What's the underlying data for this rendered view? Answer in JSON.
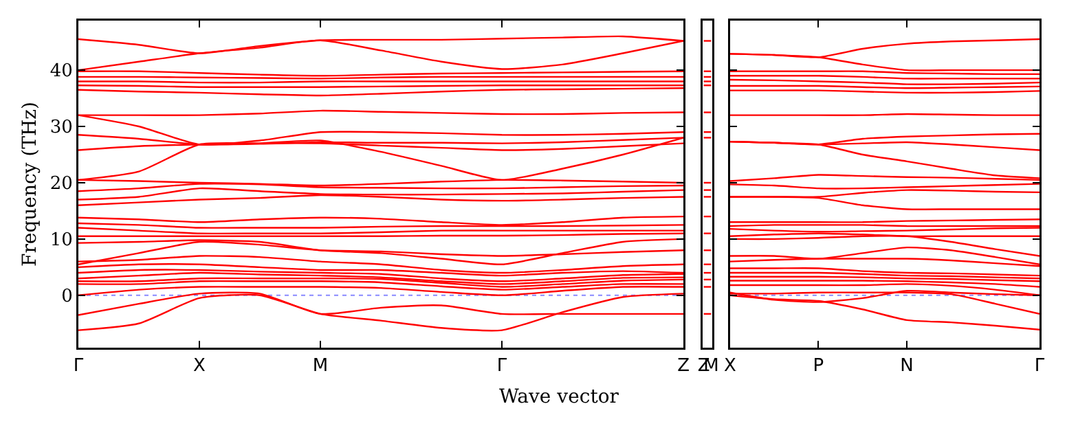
{
  "chart_data": [
    {
      "type": "line",
      "xlabel": "Wave vector",
      "ylabel": "Frequency (THz)",
      "categories": [
        "Γ",
        null,
        "X",
        null,
        "M",
        null,
        null,
        "Γ",
        null,
        null,
        "Z"
      ],
      "ylim": [
        -9.3,
        48.8
      ],
      "yticks": [
        0,
        10,
        20,
        30,
        40
      ],
      "grid": false,
      "ref_lines": [
        {
          "axis": "y",
          "value": 0,
          "color": "#8888ff",
          "line_style": "dotted"
        }
      ],
      "series": [
        {
          "color": "#ff0000",
          "values": [
            45.5,
            44.5,
            43,
            44.3,
            45.3,
            45.4,
            45.4,
            45.6,
            45.8,
            46,
            45.2
          ]
        },
        {
          "color": "#ff0000",
          "values": [
            40,
            41.5,
            43,
            44,
            45.3,
            43.5,
            41.5,
            40.2,
            41,
            43,
            45.2
          ]
        },
        {
          "color": "#ff0000",
          "values": [
            39.8,
            39.8,
            39.5,
            39.2,
            39,
            39.2,
            39.4,
            39.5,
            39.6,
            39.7,
            39.8
          ]
        },
        {
          "color": "#ff0000",
          "values": [
            38.8,
            38.8,
            38.7,
            38.6,
            38.5,
            38.7,
            38.8,
            38.8,
            38.8,
            38.8,
            38.8
          ]
        },
        {
          "color": "#ff0000",
          "values": [
            38,
            38,
            37.8,
            37.8,
            38,
            38,
            38,
            38,
            38,
            38,
            38
          ]
        },
        {
          "color": "#ff0000",
          "values": [
            37.3,
            37.2,
            37,
            37,
            37,
            37.1,
            37.2,
            37.3,
            37.3,
            37.3,
            37.3
          ]
        },
        {
          "color": "#ff0000",
          "values": [
            36.5,
            36.2,
            36,
            35.7,
            35.5,
            35.8,
            36.2,
            36.5,
            36.6,
            36.7,
            36.8
          ]
        },
        {
          "color": "#ff0000",
          "values": [
            32,
            32,
            32,
            32.3,
            32.8,
            32.6,
            32.4,
            32.2,
            32.2,
            32.4,
            32.5
          ]
        },
        {
          "color": "#ff0000",
          "values": [
            32,
            30,
            26.8,
            27.5,
            29,
            29,
            28.8,
            28.5,
            28.5,
            28.7,
            29
          ]
        },
        {
          "color": "#ff0000",
          "values": [
            28.5,
            27.8,
            26.8,
            26.9,
            27.2,
            27.1,
            27.1,
            27,
            27.2,
            27.6,
            28
          ]
        },
        {
          "color": "#ff0000",
          "values": [
            25.8,
            26.5,
            26.8,
            27,
            27,
            26.6,
            26.2,
            25.8,
            26,
            26.5,
            27
          ]
        },
        {
          "color": "#ff0000",
          "values": [
            20.5,
            22,
            26.8,
            27,
            27.5,
            25.5,
            23,
            20.5,
            22.5,
            25,
            28
          ]
        },
        {
          "color": "#ff0000",
          "values": [
            20.5,
            20.3,
            20,
            19.8,
            19.5,
            19.8,
            20.2,
            20.5,
            20.4,
            20.2,
            20
          ]
        },
        {
          "color": "#ff0000",
          "values": [
            18.5,
            19,
            19.8,
            19.7,
            19.2,
            19.1,
            19,
            19,
            19.2,
            19.4,
            19.5
          ]
        },
        {
          "color": "#ff0000",
          "values": [
            17,
            17.5,
            19,
            18.5,
            18,
            17.9,
            17.9,
            18,
            18.1,
            18.4,
            18.7
          ]
        },
        {
          "color": "#ff0000",
          "values": [
            16,
            16.5,
            17,
            17.3,
            17.8,
            17.5,
            17,
            16.8,
            17,
            17.3,
            17.5
          ]
        },
        {
          "color": "#ff0000",
          "values": [
            13.8,
            13.5,
            13,
            13.5,
            13.8,
            13.6,
            13,
            12.5,
            13,
            13.8,
            14
          ]
        },
        {
          "color": "#ff0000",
          "values": [
            12.8,
            12.5,
            12,
            12,
            12,
            12.2,
            12.3,
            12.3,
            12.3,
            12.4,
            12.5
          ]
        },
        {
          "color": "#ff0000",
          "values": [
            12,
            11.5,
            11,
            11,
            11,
            11.2,
            11.5,
            11.5,
            11.5,
            11.5,
            11.5
          ]
        },
        {
          "color": "#ff0000",
          "values": [
            10.5,
            10.5,
            10.5,
            10.5,
            10.5,
            10.5,
            10.6,
            10.6,
            10.7,
            10.9,
            11
          ]
        },
        {
          "color": "#ff0000",
          "values": [
            9.3,
            9.5,
            9.8,
            9.5,
            8,
            7.5,
            6.5,
            5.5,
            7.5,
            9.5,
            10
          ]
        },
        {
          "color": "#ff0000",
          "values": [
            5.5,
            7.5,
            9.5,
            9,
            8,
            7.8,
            7.3,
            7,
            7.3,
            7.7,
            8
          ]
        },
        {
          "color": "#ff0000",
          "values": [
            6,
            6.3,
            7,
            6.8,
            6,
            5.5,
            4.5,
            4,
            4.5,
            5.2,
            5.5
          ]
        },
        {
          "color": "#ff0000",
          "values": [
            5,
            5.5,
            5.5,
            5,
            4.5,
            4.5,
            4,
            3.5,
            4,
            4.3,
            4
          ]
        },
        {
          "color": "#ff0000",
          "values": [
            4,
            4.5,
            4.5,
            4.2,
            4,
            3.8,
            3,
            2.5,
            3,
            3.6,
            3.8
          ]
        },
        {
          "color": "#ff0000",
          "values": [
            3,
            3.5,
            4,
            3.7,
            3.5,
            3.2,
            2.5,
            2,
            2.5,
            3.1,
            3.2
          ]
        },
        {
          "color": "#ff0000",
          "values": [
            2.5,
            2.5,
            3,
            3,
            3,
            2.9,
            2.2,
            1.5,
            2,
            2.6,
            2.8
          ]
        },
        {
          "color": "#ff0000",
          "values": [
            2,
            2,
            2.5,
            2.5,
            2.5,
            2.3,
            1.6,
            1,
            1.5,
            2,
            2
          ]
        },
        {
          "color": "#ff0000",
          "values": [
            0,
            1,
            1.5,
            1.5,
            1.5,
            1.3,
            0.6,
            0,
            0.8,
            1.5,
            1.5
          ]
        },
        {
          "color": "#ff0000",
          "values": [
            -3.5,
            -1.5,
            0.3,
            0.3,
            -3.3,
            -2.2,
            -1.8,
            -3.3,
            -3.3,
            -3.3,
            -3.3
          ]
        },
        {
          "color": "#ff0000",
          "values": [
            -6.2,
            -5,
            -0.5,
            0,
            -3.3,
            -4.5,
            -5.8,
            -6.2,
            -3,
            -0.3,
            0.3
          ]
        }
      ]
    },
    {
      "type": "line",
      "categories": [
        "Z",
        "M"
      ],
      "ylim": [
        -9.3,
        48.8
      ],
      "tick_labels": "x",
      "grid": false,
      "series": [
        {
          "color": "#ff0000",
          "values": [
            45.2,
            45.2
          ]
        },
        {
          "color": "#ff0000",
          "values": [
            39.8,
            39.8
          ]
        },
        {
          "color": "#ff0000",
          "values": [
            38.8,
            38.8
          ]
        },
        {
          "color": "#ff0000",
          "values": [
            38,
            38
          ]
        },
        {
          "color": "#ff0000",
          "values": [
            37.3,
            37.3
          ]
        },
        {
          "color": "#ff0000",
          "values": [
            32.5,
            32.5
          ]
        },
        {
          "color": "#ff0000",
          "values": [
            29,
            29
          ]
        },
        {
          "color": "#ff0000",
          "values": [
            28,
            28
          ]
        },
        {
          "color": "#ff0000",
          "values": [
            20,
            20
          ]
        },
        {
          "color": "#ff0000",
          "values": [
            18.7,
            18.7
          ]
        },
        {
          "color": "#ff0000",
          "values": [
            17.5,
            17.5
          ]
        },
        {
          "color": "#ff0000",
          "values": [
            14,
            14
          ]
        },
        {
          "color": "#ff0000",
          "values": [
            11,
            11
          ]
        },
        {
          "color": "#ff0000",
          "values": [
            8,
            8
          ]
        },
        {
          "color": "#ff0000",
          "values": [
            5.5,
            5.5
          ]
        },
        {
          "color": "#ff0000",
          "values": [
            4,
            4
          ]
        },
        {
          "color": "#ff0000",
          "values": [
            2.8,
            2.8
          ]
        },
        {
          "color": "#ff0000",
          "values": [
            1.5,
            1.5
          ]
        },
        {
          "color": "#ff0000",
          "values": [
            -3.3,
            -3.3
          ]
        }
      ]
    },
    {
      "type": "line",
      "categories": [
        "X",
        null,
        "P",
        null,
        "N",
        null,
        null,
        "Γ"
      ],
      "ylim": [
        -9.3,
        48.8
      ],
      "yticks": [
        {
          "value": 0,
          "label": null
        },
        {
          "value": 10,
          "label": null
        },
        {
          "value": 20,
          "label": null
        },
        {
          "value": 30,
          "label": null
        },
        {
          "value": 40,
          "label": null
        }
      ],
      "tick_labels": "x",
      "grid": false,
      "ref_lines": [
        {
          "axis": "y",
          "value": 0,
          "color": "#8888ff",
          "line_style": "dotted"
        }
      ],
      "series": [
        {
          "color": "#ff0000",
          "values": [
            42.9,
            42.7,
            42.3,
            43.8,
            44.7,
            45.1,
            45.3,
            45.5
          ]
        },
        {
          "color": "#ff0000",
          "values": [
            42.9,
            42.7,
            42.3,
            41,
            40,
            40,
            40,
            40
          ]
        },
        {
          "color": "#ff0000",
          "values": [
            39.8,
            39.8,
            39.8,
            39.8,
            39.5,
            39.4,
            39.3,
            39.3
          ]
        },
        {
          "color": "#ff0000",
          "values": [
            39,
            39,
            39,
            38.8,
            38.5,
            38.5,
            38.5,
            38.5
          ]
        },
        {
          "color": "#ff0000",
          "values": [
            38.3,
            38.2,
            38,
            37.8,
            37.5,
            37.5,
            37.6,
            37.8
          ]
        },
        {
          "color": "#ff0000",
          "values": [
            37.2,
            37.2,
            37.2,
            37,
            36.8,
            36.9,
            37,
            37.1
          ]
        },
        {
          "color": "#ff0000",
          "values": [
            36.4,
            36.4,
            36.4,
            36.2,
            36,
            36,
            36.1,
            36.3
          ]
        },
        {
          "color": "#ff0000",
          "values": [
            32,
            32,
            32,
            32,
            32.2,
            32.1,
            32,
            32
          ]
        },
        {
          "color": "#ff0000",
          "values": [
            27.3,
            27.1,
            26.8,
            27.8,
            28.2,
            28.4,
            28.6,
            28.7
          ]
        },
        {
          "color": "#ff0000",
          "values": [
            27.3,
            27.1,
            26.8,
            27,
            27.2,
            26.8,
            26.3,
            25.8
          ]
        },
        {
          "color": "#ff0000",
          "values": [
            27.3,
            27.1,
            26.8,
            25,
            23.8,
            22.5,
            21.3,
            20.8
          ]
        },
        {
          "color": "#ff0000",
          "values": [
            20.3,
            20.8,
            21.4,
            21.2,
            21,
            20.9,
            20.7,
            20.5
          ]
        },
        {
          "color": "#ff0000",
          "values": [
            19.7,
            19.5,
            19,
            19,
            19.2,
            19.4,
            19.6,
            19.8
          ]
        },
        {
          "color": "#ff0000",
          "values": [
            17.5,
            17.5,
            17.5,
            18.2,
            18.7,
            18.6,
            18.4,
            18.3
          ]
        },
        {
          "color": "#ff0000",
          "values": [
            17.5,
            17.5,
            17.3,
            16,
            15.3,
            15.3,
            15.3,
            15.3
          ]
        },
        {
          "color": "#ff0000",
          "values": [
            13,
            13,
            13,
            13,
            13.2,
            13.3,
            13.4,
            13.5
          ]
        },
        {
          "color": "#ff0000",
          "values": [
            12.3,
            12.5,
            12.5,
            12.5,
            12.3,
            12.3,
            12.3,
            12.3
          ]
        },
        {
          "color": "#ff0000",
          "values": [
            11.8,
            11.5,
            11.3,
            11.4,
            11.5,
            11.7,
            11.9,
            12
          ]
        },
        {
          "color": "#ff0000",
          "values": [
            10.5,
            10.8,
            11,
            10.8,
            10.5,
            10.5,
            10.5,
            10.5
          ]
        },
        {
          "color": "#ff0000",
          "values": [
            10,
            10,
            10.2,
            10.5,
            10.5,
            9.5,
            8.2,
            7
          ]
        },
        {
          "color": "#ff0000",
          "values": [
            7,
            7,
            6.5,
            7.5,
            8.5,
            8,
            6.8,
            5.5
          ]
        },
        {
          "color": "#ff0000",
          "values": [
            6,
            6.3,
            6.5,
            6.5,
            6.5,
            6.2,
            5.7,
            5.2
          ]
        },
        {
          "color": "#ff0000",
          "values": [
            4.8,
            4.8,
            4.8,
            4.3,
            4,
            3.9,
            3.7,
            3.5
          ]
        },
        {
          "color": "#ff0000",
          "values": [
            4,
            4,
            4,
            3.8,
            3.5,
            3.4,
            3.2,
            3
          ]
        },
        {
          "color": "#ff0000",
          "values": [
            3.3,
            3.3,
            3.3,
            3.2,
            3,
            2.9,
            2.7,
            2.5
          ]
        },
        {
          "color": "#ff0000",
          "values": [
            2.6,
            2.6,
            2.6,
            2.6,
            2.5,
            2.3,
            2,
            1.5
          ]
        },
        {
          "color": "#ff0000",
          "values": [
            1.8,
            1.8,
            1.8,
            1.8,
            2,
            1.7,
            1,
            0
          ]
        },
        {
          "color": "#ff0000",
          "values": [
            0.5,
            -0.8,
            -1.2,
            -0.5,
            0.8,
            0.5,
            0.2,
            0
          ]
        },
        {
          "color": "#ff0000",
          "values": [
            0,
            -0.7,
            -1,
            -2.5,
            -4.4,
            -4.8,
            -5.4,
            -6.1
          ]
        },
        {
          "color": "#ff0000",
          "values": [
            0.3,
            0.3,
            0.5,
            0.5,
            0.5,
            0.2,
            -1.5,
            -3.3
          ]
        }
      ]
    }
  ]
}
